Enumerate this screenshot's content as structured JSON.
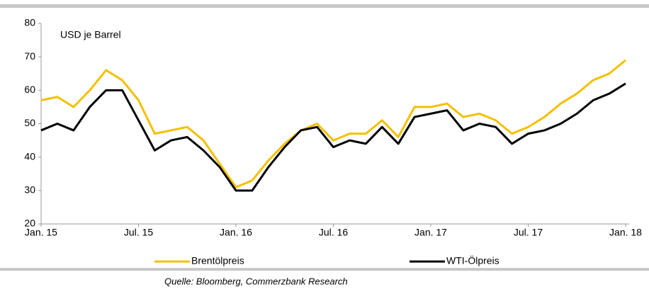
{
  "chart_data": {
    "type": "line",
    "annotation": "USD je Barrel",
    "source": "Quelle: Bloomberg, Commerzbank Research",
    "categories": [
      "Jan. 15",
      null,
      null,
      null,
      null,
      null,
      "Jul. 15",
      null,
      null,
      null,
      null,
      null,
      "Jan. 16",
      null,
      null,
      null,
      null,
      null,
      "Jul. 16",
      null,
      null,
      null,
      null,
      null,
      "Jan. 17",
      null,
      null,
      null,
      null,
      null,
      "Jul. 17",
      null,
      null,
      null,
      null,
      null,
      "Jan. 18"
    ],
    "series": [
      {
        "name": "Brentölpreis",
        "color": "#f5c000",
        "values": [
          57,
          58,
          55,
          60,
          66,
          63,
          57,
          47,
          48,
          49,
          45,
          38,
          31,
          33,
          39,
          44,
          48,
          50,
          45,
          47,
          47,
          51,
          46,
          55,
          55,
          56,
          52,
          53,
          51,
          47,
          49,
          52,
          56,
          59,
          63,
          65,
          69
        ]
      },
      {
        "name": "WTI-Ölpreis",
        "color": "#000000",
        "values": [
          48,
          50,
          48,
          55,
          60,
          60,
          51,
          42,
          45,
          46,
          42,
          37,
          30,
          30,
          37,
          43,
          48,
          49,
          43,
          45,
          44,
          49,
          44,
          52,
          53,
          54,
          48,
          50,
          49,
          44,
          47,
          48,
          50,
          53,
          57,
          59,
          62
        ]
      }
    ],
    "ylim": [
      20,
      80
    ],
    "yticks": [
      20,
      30,
      40,
      50,
      60,
      70,
      80
    ]
  }
}
